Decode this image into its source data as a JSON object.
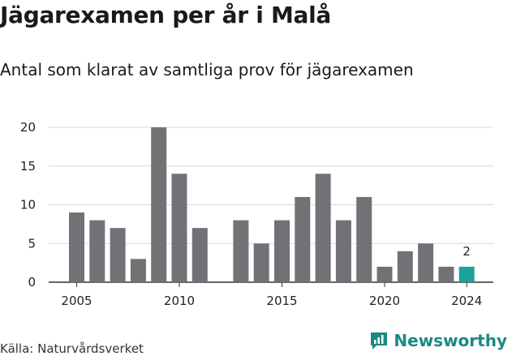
{
  "title": "Jägarexamen per år i Malå",
  "subtitle": "Antal som klarat av samtliga prov för jägarexamen",
  "source": "Källa: Naturvårdsverket",
  "brand": {
    "name": "Newsworthy",
    "icon": "newsworthy-logo-icon"
  },
  "colors": {
    "bar": "#727176",
    "highlight": "#1aa39a",
    "grid": "#d9d9d9",
    "axis": "#333333",
    "brand": "#1a8a82"
  },
  "chart_data": {
    "type": "bar",
    "title": "Jägarexamen per år i Malå",
    "subtitle": "Antal som klarat av samtliga prov för jägarexamen",
    "xlabel": "",
    "ylabel": "",
    "x": [
      2005,
      2006,
      2007,
      2008,
      2009,
      2010,
      2011,
      2012,
      2013,
      2014,
      2015,
      2016,
      2017,
      2018,
      2019,
      2020,
      2021,
      2022,
      2023,
      2024
    ],
    "values": [
      9,
      8,
      7,
      3,
      20,
      14,
      7,
      null,
      8,
      5,
      8,
      11,
      14,
      8,
      11,
      2,
      4,
      5,
      2,
      2
    ],
    "highlight": 2024,
    "data_labels": [
      {
        "x": 2024,
        "text": "2"
      }
    ],
    "ylim": [
      0,
      20
    ],
    "yticks": [
      "0",
      "5",
      "10",
      "15",
      "20"
    ],
    "xticks": [
      "2005",
      "2010",
      "2015",
      "2020",
      "2024"
    ],
    "grid": true,
    "legend": "none"
  }
}
